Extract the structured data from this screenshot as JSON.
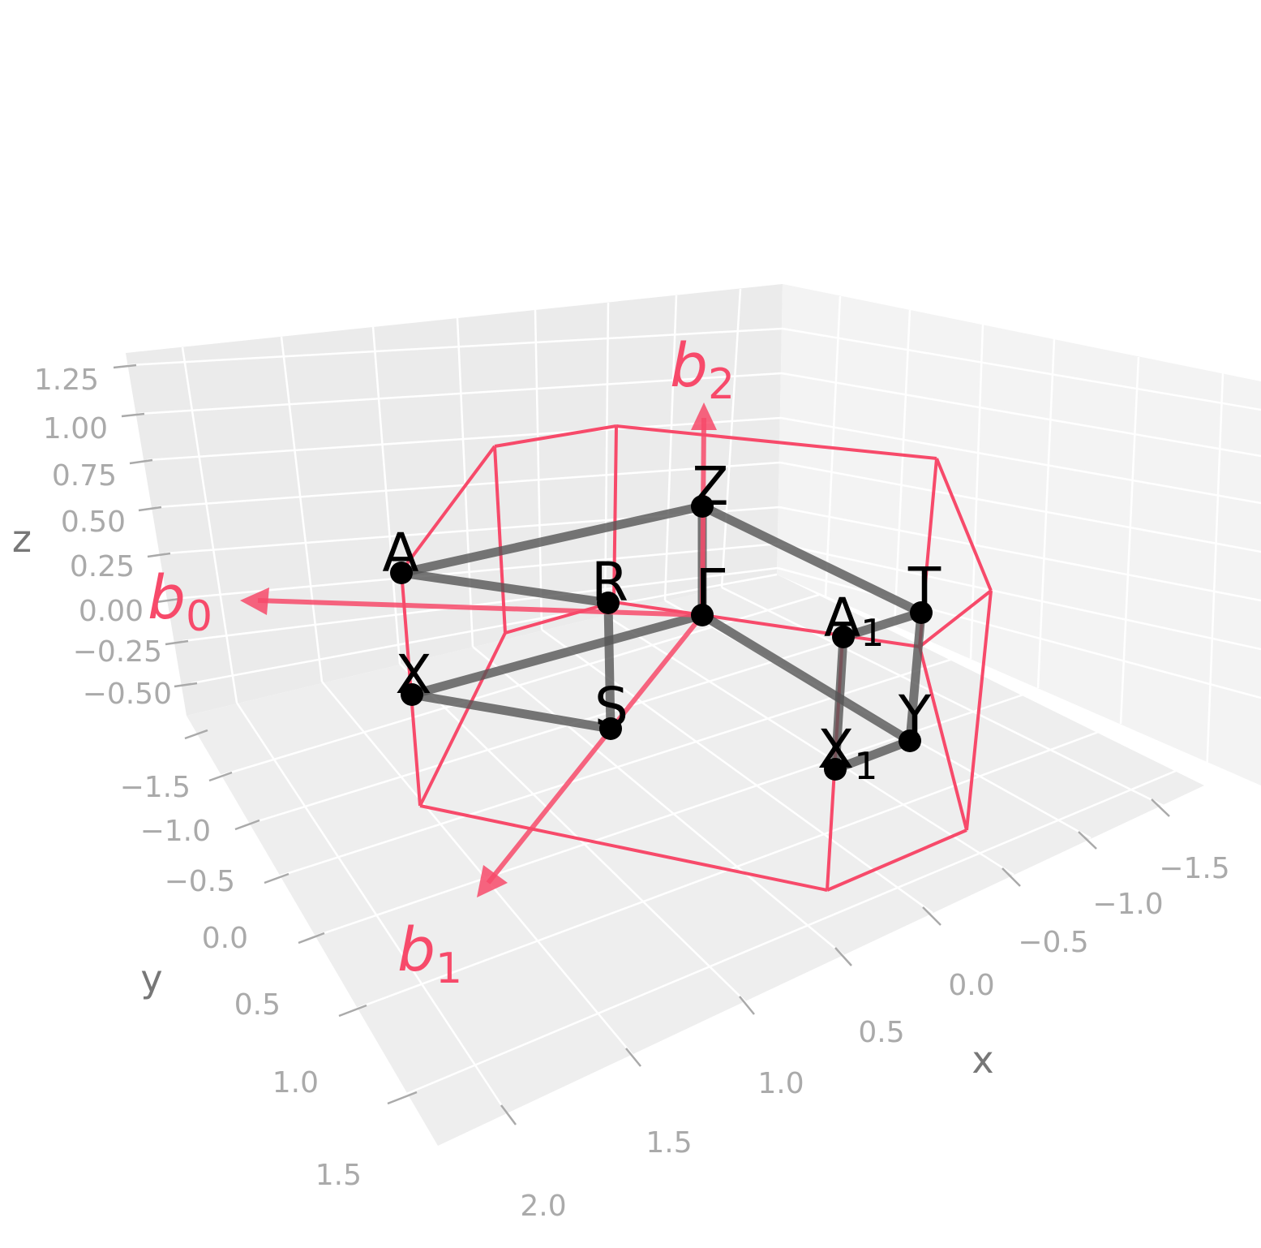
{
  "colors": {
    "pane_back": "#ebebeb",
    "pane_side": "#f3f3f3",
    "pane_floor": "#eeeeee",
    "grid": "#ffffff",
    "brillouin_zone": "#f74a6a",
    "vectors": "#f74a6a",
    "path": "#555555",
    "points": "#000000",
    "tick_text": "#aaaaaa",
    "axis_label": "#777777"
  },
  "axes": {
    "x": {
      "label": "x",
      "ticks": [
        "−1.5",
        "−1.0",
        "−0.5",
        "0.0",
        "0.5",
        "1.0",
        "1.5",
        "2.0"
      ]
    },
    "y": {
      "label": "y",
      "ticks": [
        "−1.5",
        "−1.0",
        "−0.5",
        "0.0",
        "0.5",
        "1.0",
        "1.5"
      ]
    },
    "z": {
      "label": "z",
      "ticks": [
        "1.25",
        "1.00",
        "0.75",
        "0.50",
        "0.25",
        "0.00",
        "−0.25",
        "−0.50"
      ]
    }
  },
  "vectors": [
    {
      "name": "b",
      "sub": "0"
    },
    {
      "name": "b",
      "sub": "1"
    },
    {
      "name": "b",
      "sub": "2"
    }
  ],
  "kpoints": [
    {
      "name": "A"
    },
    {
      "name": "R"
    },
    {
      "name": "Z"
    },
    {
      "name": "Γ"
    },
    {
      "name": "T"
    },
    {
      "name": "A",
      "sub": "1"
    },
    {
      "name": "X"
    },
    {
      "name": "S"
    },
    {
      "name": "Y"
    },
    {
      "name": "X",
      "sub": "1"
    }
  ],
  "path": [
    [
      "A",
      "Z"
    ],
    [
      "Z",
      "Γ"
    ],
    [
      "Γ",
      "X"
    ],
    [
      "X",
      "S"
    ],
    [
      "S",
      "R"
    ],
    [
      "R",
      "A"
    ],
    [
      "Z",
      "T"
    ],
    [
      "T",
      "Y"
    ],
    [
      "Y",
      "Γ"
    ],
    [
      "Y",
      "X1"
    ],
    [
      "X1",
      "A1"
    ],
    [
      "A1",
      "T"
    ]
  ]
}
